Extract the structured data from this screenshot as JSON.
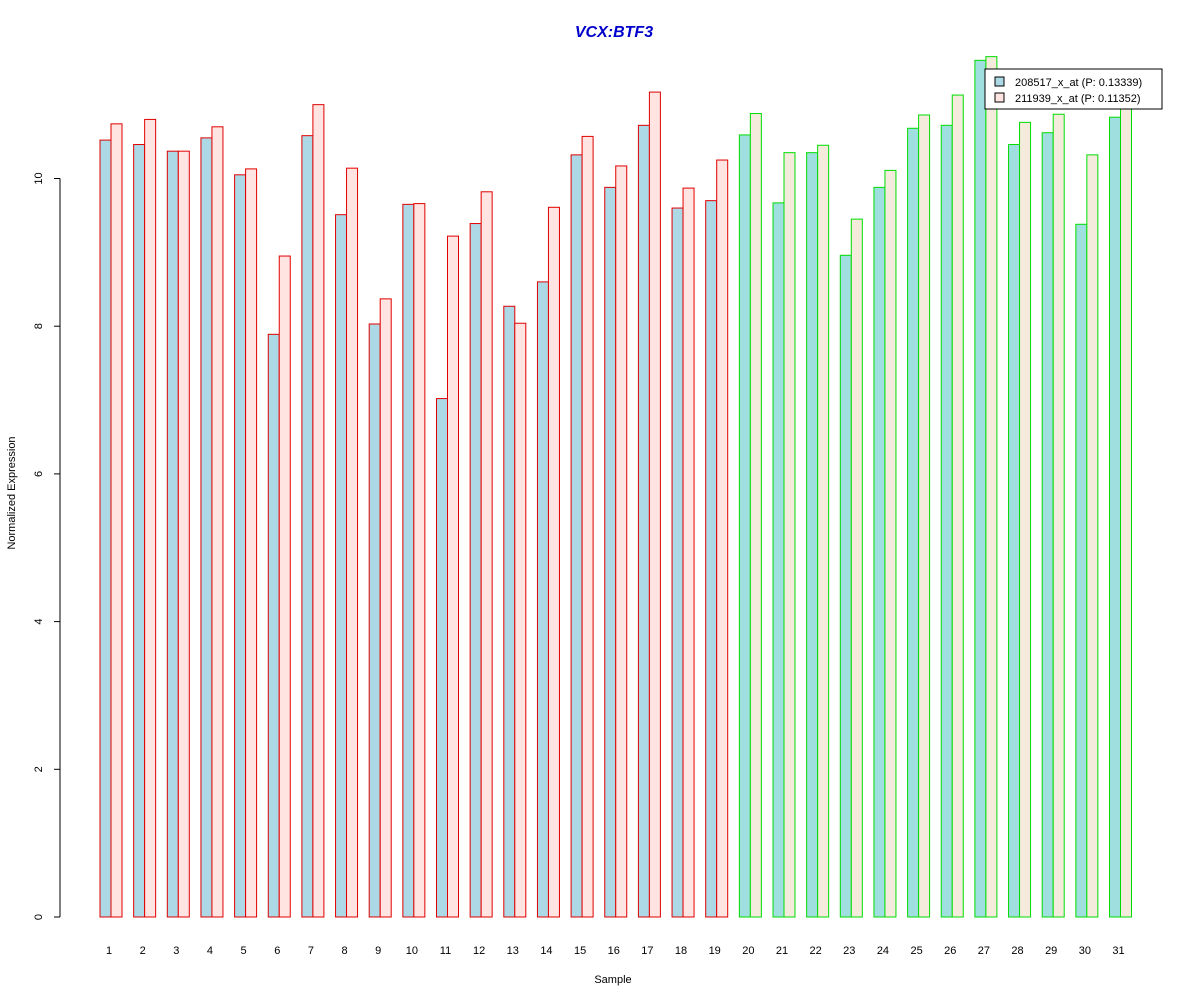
{
  "chart_data": {
    "type": "bar",
    "title": "VCX:BTF3",
    "xlabel": "Sample",
    "ylabel": "Normalized Expression",
    "ylim": [
      0,
      12
    ],
    "yticks": [
      "0",
      "2",
      "4",
      "6",
      "8",
      "10"
    ],
    "categories": [
      "1",
      "2",
      "3",
      "4",
      "5",
      "6",
      "7",
      "8",
      "9",
      "10",
      "11",
      "12",
      "13",
      "14",
      "15",
      "16",
      "17",
      "18",
      "19",
      "20",
      "21",
      "22",
      "23",
      "24",
      "25",
      "26",
      "27",
      "28",
      "29",
      "30",
      "31"
    ],
    "groups": [
      "red",
      "red",
      "red",
      "red",
      "red",
      "red",
      "red",
      "red",
      "red",
      "red",
      "red",
      "red",
      "red",
      "red",
      "red",
      "red",
      "red",
      "red",
      "red",
      "green",
      "green",
      "green",
      "green",
      "green",
      "green",
      "green",
      "green",
      "green",
      "green",
      "green",
      "green"
    ],
    "series": [
      {
        "name": "208517_x_at (P: 0.13339)",
        "values": [
          10.52,
          10.46,
          10.37,
          10.55,
          10.05,
          7.89,
          10.58,
          9.51,
          8.03,
          9.65,
          7.02,
          9.39,
          8.27,
          8.6,
          10.32,
          9.88,
          10.72,
          9.6,
          9.7,
          10.59,
          9.67,
          10.35,
          8.96,
          9.88,
          10.68,
          10.72,
          11.6,
          10.46,
          10.62,
          9.38,
          10.83
        ]
      },
      {
        "name": "211939_x_at (P: 0.11352)",
        "values": [
          10.74,
          10.8,
          10.37,
          10.7,
          10.13,
          8.95,
          11.0,
          10.14,
          8.37,
          9.66,
          9.22,
          9.82,
          8.04,
          9.61,
          10.57,
          10.17,
          11.17,
          9.87,
          10.25,
          10.88,
          10.35,
          10.45,
          9.45,
          10.11,
          10.86,
          11.13,
          11.65,
          10.76,
          10.87,
          10.32,
          11.0
        ]
      }
    ],
    "colors": {
      "series1_fill_red": "#add8e6",
      "series2_fill_red": "#ffe4e1",
      "series1_fill_green": "#a0dfdf",
      "series2_fill_green": "#f5ebdc",
      "border_red": "#e00000",
      "border_green": "#00dd00",
      "title": "#0000cd"
    },
    "legend": {
      "placement": "top-right",
      "entries": [
        "208517_x_at (P: 0.13339)",
        "211939_x_at (P: 0.11352)"
      ]
    },
    "grid": false
  }
}
